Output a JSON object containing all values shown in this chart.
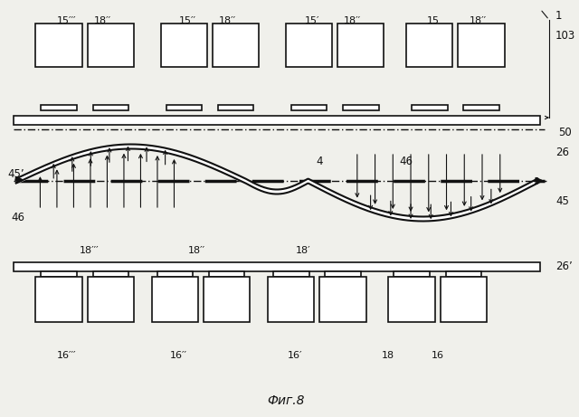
{
  "fig_label": "Фиг.8",
  "background_color": "#f0f0eb",
  "label_1": "1",
  "label_103": "103",
  "label_50": "50",
  "label_26": "26",
  "label_26p": "26’",
  "label_4": "4",
  "label_46": "46",
  "label_45": "45",
  "label_45p": "45’",
  "label_46b": "46",
  "top_label_pairs": [
    [
      75,
      "15′′′"
    ],
    [
      115,
      "18′′"
    ],
    [
      210,
      "15′′"
    ],
    [
      255,
      "18′′"
    ],
    [
      350,
      "15′"
    ],
    [
      395,
      "18′′"
    ],
    [
      485,
      "15"
    ],
    [
      535,
      "18′′"
    ]
  ],
  "bottom_label_pairs1": [
    [
      100,
      "18′′′"
    ],
    [
      220,
      "18′′"
    ],
    [
      340,
      "18′"
    ]
  ],
  "bottom_label_pairs2": [
    [
      75,
      "16′′′"
    ],
    [
      200,
      "16′′"
    ],
    [
      330,
      "16′"
    ],
    [
      435,
      "18"
    ],
    [
      490,
      "16"
    ]
  ]
}
